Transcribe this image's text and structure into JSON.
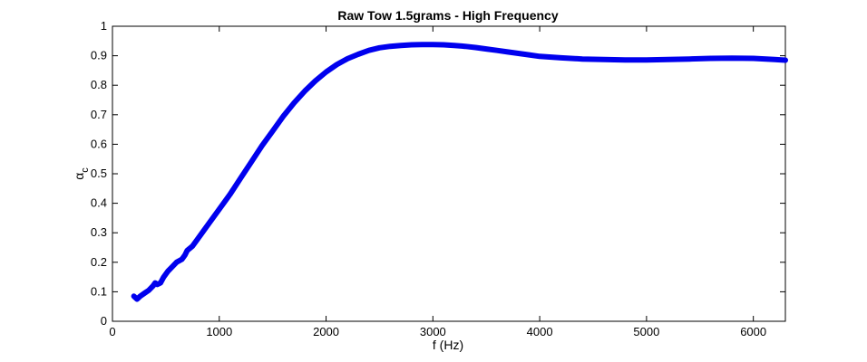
{
  "chart_data": {
    "type": "line",
    "title": "Raw Tow 1.5grams - High Frequency",
    "xlabel": "f (Hz)",
    "ylabel_symbol": "α",
    "ylabel_subscript": "c",
    "xlim": [
      0,
      6300
    ],
    "ylim": [
      0,
      1
    ],
    "xticks": [
      0,
      1000,
      2000,
      3000,
      4000,
      5000,
      6000
    ],
    "xtick_labels": [
      "0",
      "1000",
      "2000",
      "3000",
      "4000",
      "5000",
      "6000"
    ],
    "yticks": [
      0,
      0.1,
      0.2,
      0.3,
      0.4,
      0.5,
      0.6,
      0.7,
      0.8,
      0.9,
      1
    ],
    "ytick_labels": [
      "0",
      "0.1",
      "0.2",
      "0.3",
      "0.4",
      "0.5",
      "0.6",
      "0.7",
      "0.8",
      "0.9",
      "1"
    ],
    "grid": false,
    "line_color": "#0000ee",
    "series": [
      {
        "x": [
          200,
          230,
          260,
          300,
          340,
          380,
          400,
          420,
          450,
          480,
          520,
          560,
          600,
          650,
          680,
          700,
          750,
          800,
          900,
          1000,
          1100,
          1200,
          1300,
          1400,
          1500,
          1600,
          1700,
          1800,
          1900,
          2000,
          2100,
          2200,
          2300,
          2400,
          2500,
          2600,
          2700,
          2800,
          2900,
          3000,
          3100,
          3200,
          3300,
          3400,
          3500,
          3600,
          3700,
          3800,
          3900,
          4000,
          4200,
          4400,
          4600,
          4800,
          5000,
          5200,
          5400,
          5600,
          5800,
          6000,
          6200,
          6300
        ],
        "y": [
          0.085,
          0.075,
          0.085,
          0.095,
          0.105,
          0.12,
          0.13,
          0.125,
          0.13,
          0.15,
          0.17,
          0.185,
          0.2,
          0.21,
          0.225,
          0.24,
          0.255,
          0.28,
          0.33,
          0.38,
          0.43,
          0.485,
          0.54,
          0.595,
          0.645,
          0.695,
          0.74,
          0.78,
          0.815,
          0.845,
          0.87,
          0.89,
          0.905,
          0.918,
          0.927,
          0.932,
          0.935,
          0.937,
          0.938,
          0.938,
          0.937,
          0.935,
          0.932,
          0.928,
          0.923,
          0.918,
          0.913,
          0.908,
          0.903,
          0.898,
          0.893,
          0.889,
          0.887,
          0.886,
          0.886,
          0.887,
          0.889,
          0.891,
          0.892,
          0.891,
          0.887,
          0.885
        ]
      }
    ]
  }
}
